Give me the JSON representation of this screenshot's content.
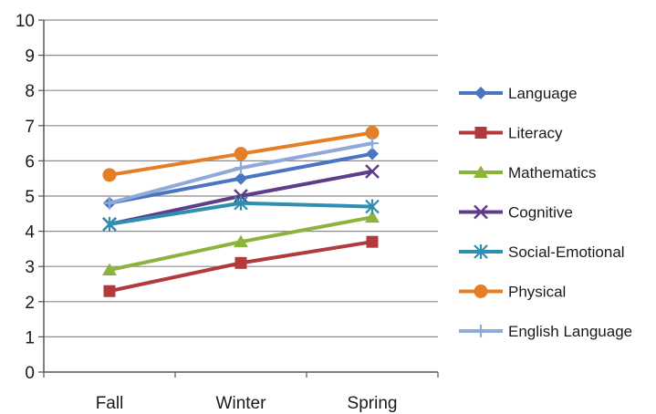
{
  "chart_data": {
    "type": "line",
    "categories": [
      "Fall",
      "Winter",
      "Spring"
    ],
    "ylim": [
      0,
      10
    ],
    "yticks": [
      0,
      1,
      2,
      3,
      4,
      5,
      6,
      7,
      8,
      9,
      10
    ],
    "grid": true,
    "legend_position": "right",
    "series": [
      {
        "name": "Language",
        "values": [
          4.8,
          5.5,
          6.2
        ],
        "color": "#4a74c4",
        "marker": "diamond"
      },
      {
        "name": "Literacy",
        "values": [
          2.3,
          3.1,
          3.7
        ],
        "color": "#b33a3a",
        "marker": "square"
      },
      {
        "name": "Mathematics",
        "values": [
          2.9,
          3.7,
          4.4
        ],
        "color": "#8cb43c",
        "marker": "triangle"
      },
      {
        "name": "Cognitive",
        "values": [
          4.2,
          5.0,
          5.7
        ],
        "color": "#5e3d8a",
        "marker": "x"
      },
      {
        "name": "Social-Emotional",
        "values": [
          4.2,
          4.8,
          4.7
        ],
        "color": "#2f8fb0",
        "marker": "asterisk"
      },
      {
        "name": "Physical",
        "values": [
          5.6,
          6.2,
          6.8
        ],
        "color": "#e47f25",
        "marker": "circle"
      },
      {
        "name": "English Language",
        "values": [
          4.8,
          5.8,
          6.5
        ],
        "color": "#8fa9d8",
        "marker": "plus"
      }
    ]
  }
}
